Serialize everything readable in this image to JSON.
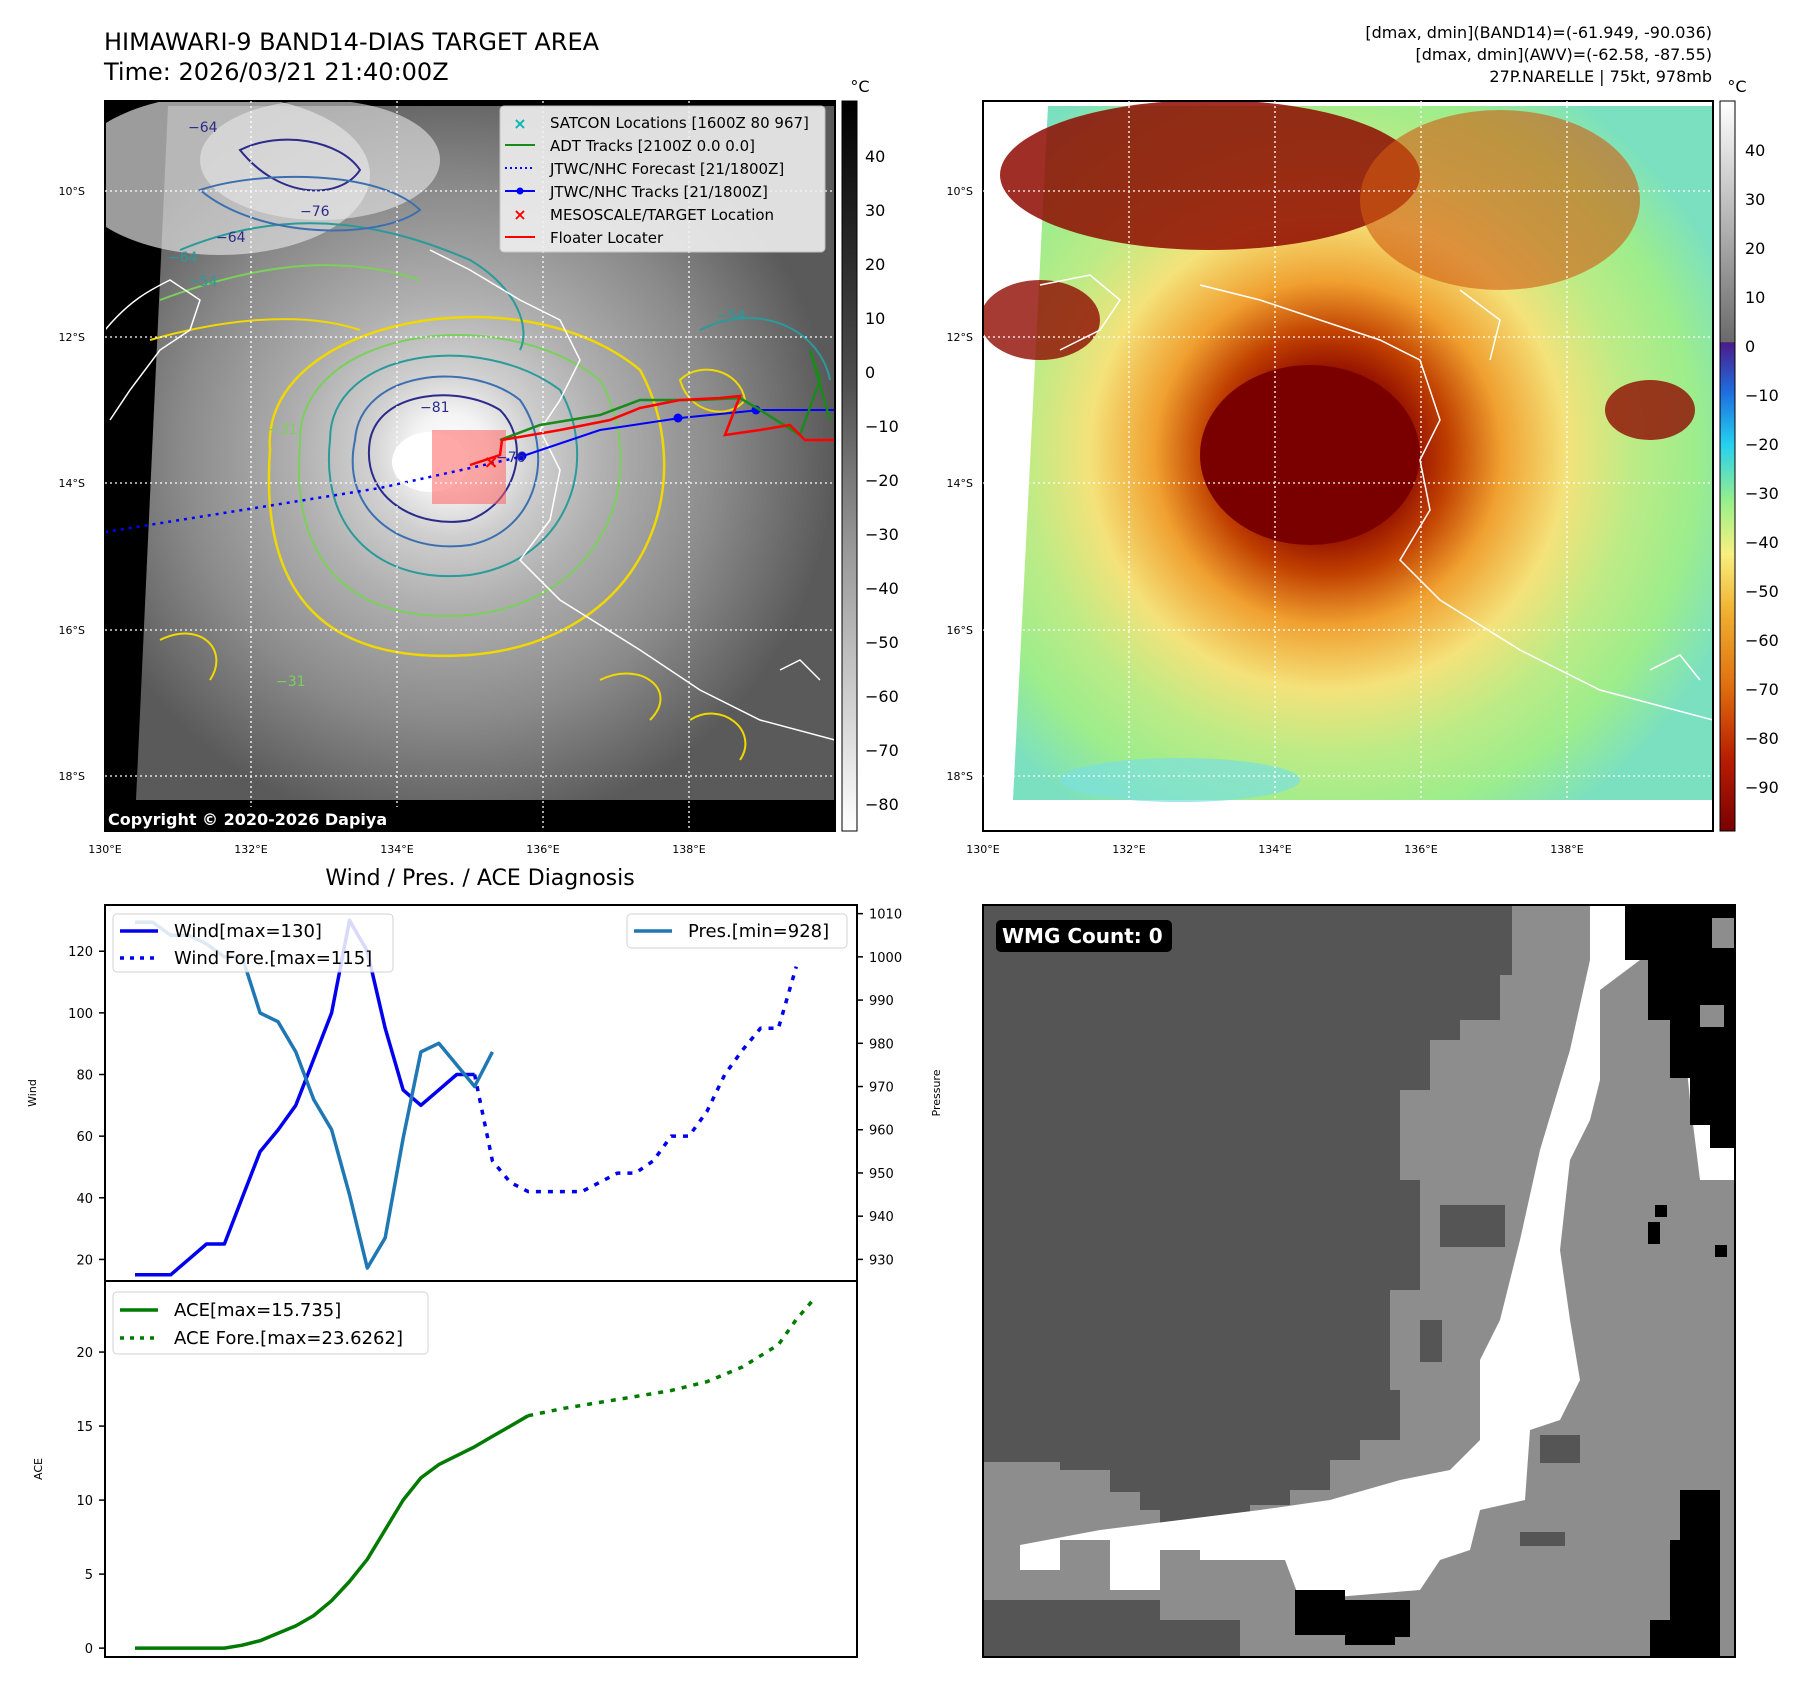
{
  "header": {
    "title_line1": "HIMAWARI-9 BAND14-DIAS TARGET AREA",
    "title_line2": "Time: 2026/03/21 21:40:00Z",
    "info_line1": "[dmax, dmin](BAND14)=(-61.949, -90.036)",
    "info_line2": "[dmax, dmin](AWV)=(-62.58, -87.55)",
    "info_line3": "27P.NARELLE | 75kt, 978mb"
  },
  "copyright": "Copyright © 2020-2026 Dapiya",
  "map_axes": {
    "lon_ticks": [
      "130°E",
      "132°E",
      "134°E",
      "136°E",
      "138°E"
    ],
    "lat_ticks": [
      "10°S",
      "12°S",
      "14°S",
      "16°S",
      "18°S"
    ]
  },
  "colorbar_left": {
    "unit": "°C",
    "ticks": [
      "40",
      "30",
      "20",
      "10",
      "0",
      "−10",
      "−20",
      "−30",
      "−40",
      "−50",
      "−60",
      "−70",
      "−80"
    ]
  },
  "colorbar_right": {
    "unit": "°C",
    "ticks": [
      "40",
      "30",
      "20",
      "10",
      "0",
      "−10",
      "−20",
      "−30",
      "−40",
      "−50",
      "−60",
      "−70",
      "−80",
      "−90"
    ]
  },
  "contour_labels": [
    "−64",
    "−76",
    "−64",
    "−64",
    "−54",
    "−81",
    "−31",
    "−31",
    "−54",
    "−76"
  ],
  "map_legend": [
    {
      "label": "SATCON Locations [1600Z 80 967]",
      "color": "#00b5b5",
      "marker": "x"
    },
    {
      "label": "ADT Tracks [2100Z 0.0 0.0]",
      "color": "#1a8a1a",
      "marker": "line"
    },
    {
      "label": "JTWC/NHC Forecast [21/1800Z]",
      "color": "#0000ff",
      "marker": "dotted"
    },
    {
      "label": "JTWC/NHC Tracks [21/1800Z]",
      "color": "#0000ff",
      "marker": "line-dot"
    },
    {
      "label": "MESOSCALE/TARGET Location",
      "color": "#ff0000",
      "marker": "x"
    },
    {
      "label": "Floater Locater",
      "color": "#ff0000",
      "marker": "line"
    }
  ],
  "wmg_count_label": "WMG Count: 0",
  "chart_data": [
    {
      "type": "line",
      "title": "Wind / Pres. / ACE Diagnosis",
      "ylabel": "Wind",
      "y2label": "Pressure",
      "ylim": [
        13,
        135
      ],
      "y2lim": [
        925,
        1012
      ],
      "yticks": [
        20,
        40,
        60,
        80,
        100,
        120
      ],
      "y2ticks": [
        930,
        940,
        950,
        960,
        970,
        980,
        990,
        1000,
        1010
      ],
      "legend_left": [
        "Wind[max=130]",
        "Wind Fore.[max=115]"
      ],
      "legend_right": "Pres.[min=928]",
      "series": [
        {
          "name": "Wind[max=130]",
          "color": "#0000ee",
          "style": "solid",
          "axis": "left",
          "points": [
            [
              0,
              15
            ],
            [
              1,
              15
            ],
            [
              2,
              15
            ],
            [
              3,
              20
            ],
            [
              4,
              25
            ],
            [
              5,
              25
            ],
            [
              6,
              40
            ],
            [
              7,
              55
            ],
            [
              8,
              62
            ],
            [
              9,
              70
            ],
            [
              10,
              85
            ],
            [
              11,
              100
            ],
            [
              12,
              130
            ],
            [
              13,
              120
            ],
            [
              14,
              95
            ],
            [
              15,
              75
            ],
            [
              16,
              70
            ],
            [
              17,
              75
            ],
            [
              18,
              80
            ],
            [
              19,
              80
            ]
          ]
        },
        {
          "name": "Wind Fore.[max=115]",
          "color": "#0000ee",
          "style": "dotted",
          "axis": "left",
          "points": [
            [
              19,
              80
            ],
            [
              20,
              52
            ],
            [
              21,
              45
            ],
            [
              22,
              42
            ],
            [
              23,
              42
            ],
            [
              24,
              42
            ],
            [
              25,
              42
            ],
            [
              26,
              45
            ],
            [
              27,
              48
            ],
            [
              28,
              48
            ],
            [
              29,
              52
            ],
            [
              30,
              60
            ],
            [
              31,
              60
            ],
            [
              32,
              68
            ],
            [
              33,
              80
            ],
            [
              34,
              88
            ],
            [
              35,
              95
            ],
            [
              36,
              95
            ],
            [
              37,
              115
            ]
          ]
        },
        {
          "name": "Pres.[min=928]",
          "color": "#1f77b4",
          "style": "solid",
          "axis": "right",
          "points": [
            [
              0,
              1008
            ],
            [
              1,
              1008
            ],
            [
              2,
              1005
            ],
            [
              3,
              1005
            ],
            [
              4,
              1003
            ],
            [
              5,
              1000
            ],
            [
              6,
              1000
            ],
            [
              7,
              987
            ],
            [
              8,
              985
            ],
            [
              9,
              978
            ],
            [
              10,
              967
            ],
            [
              11,
              960
            ],
            [
              12,
              945
            ],
            [
              13,
              928
            ],
            [
              14,
              935
            ],
            [
              15,
              958
            ],
            [
              16,
              978
            ],
            [
              17,
              980
            ],
            [
              18,
              975
            ],
            [
              19,
              970
            ],
            [
              20,
              978
            ]
          ]
        }
      ]
    },
    {
      "type": "line",
      "title": "",
      "ylabel": "ACE",
      "ylim": [
        -0.6,
        24.8
      ],
      "yticks": [
        0,
        5,
        10,
        15,
        20
      ],
      "legend": [
        "ACE[max=15.735]",
        "ACE Fore.[max=23.6262]"
      ],
      "series": [
        {
          "name": "ACE[max=15.735]",
          "color": "#007a00",
          "style": "solid",
          "points": [
            [
              0,
              0
            ],
            [
              5,
              0
            ],
            [
              6,
              0.2
            ],
            [
              7,
              0.5
            ],
            [
              8,
              1
            ],
            [
              9,
              1.5
            ],
            [
              10,
              2.2
            ],
            [
              11,
              3.2
            ],
            [
              12,
              4.5
            ],
            [
              13,
              6
            ],
            [
              14,
              8
            ],
            [
              15,
              10
            ],
            [
              16,
              11.5
            ],
            [
              17,
              12.4
            ],
            [
              18,
              13
            ],
            [
              19,
              13.6
            ],
            [
              20,
              14.3
            ],
            [
              21,
              15
            ],
            [
              22,
              15.7
            ]
          ]
        },
        {
          "name": "ACE Fore.[max=23.6262]",
          "color": "#007a00",
          "style": "dotted",
          "points": [
            [
              22,
              15.7
            ],
            [
              24,
              16.2
            ],
            [
              26,
              16.6
            ],
            [
              28,
              17
            ],
            [
              30,
              17.4
            ],
            [
              32,
              18
            ],
            [
              34,
              19
            ],
            [
              36,
              20.5
            ],
            [
              37,
              22.2
            ],
            [
              38,
              23.6
            ]
          ]
        }
      ]
    }
  ]
}
